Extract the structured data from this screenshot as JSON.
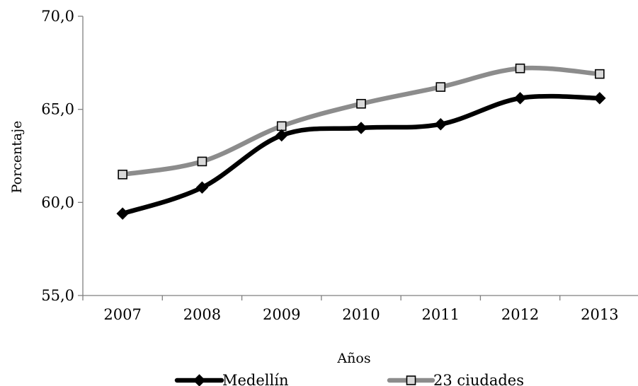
{
  "chart_data": {
    "type": "line",
    "categories": [
      "2007",
      "2008",
      "2009",
      "2010",
      "2011",
      "2012",
      "2013"
    ],
    "series": [
      {
        "name": "Medellín",
        "values": [
          59.4,
          60.8,
          63.6,
          64.0,
          64.2,
          65.6,
          65.6
        ],
        "color": "#000000",
        "marker": "diamond"
      },
      {
        "name": "23 ciudades",
        "values": [
          61.5,
          62.2,
          64.1,
          65.3,
          66.2,
          67.2,
          66.9
        ],
        "color": "#8c8c8c",
        "marker": "square"
      }
    ],
    "xlabel": "Años",
    "ylabel": "Porcentaje",
    "ylim": [
      55,
      70
    ],
    "yticks": [
      55,
      60,
      65,
      70
    ],
    "ytick_labels": [
      "55,0",
      "60,0",
      "65,0",
      "70,0"
    ],
    "grid": false,
    "legend": "bottom",
    "smooth": true
  }
}
